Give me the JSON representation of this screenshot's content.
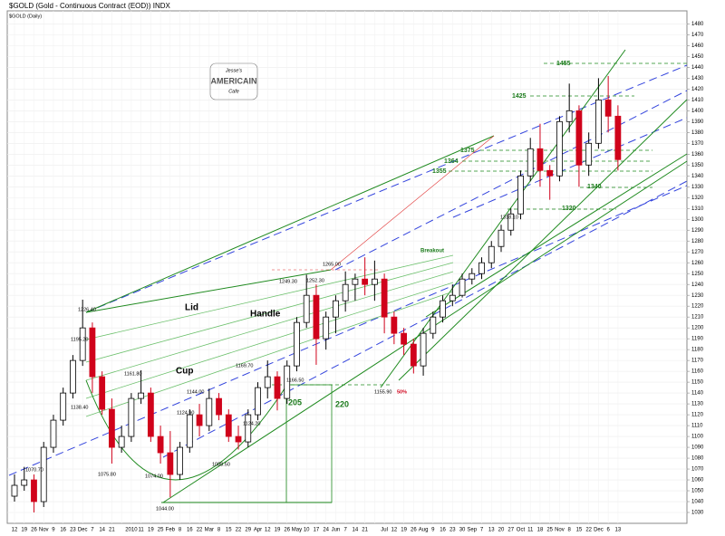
{
  "chart_data": {
    "type": "candlestick",
    "title": "$GOLD (Gold - Continuous Contract (EOD)) INDX",
    "subtitle": "$GOLD (Daily)",
    "logo": [
      "Jesse's",
      "AMERICAIN",
      "Cafe"
    ],
    "categories": [
      "12",
      "19",
      "26",
      "Nov",
      "9",
      "16",
      "23",
      "Dec",
      "7",
      "14",
      "21",
      null,
      "2010",
      "11",
      "19",
      "25",
      "Feb",
      "8",
      "16",
      "22",
      "Mar",
      "8",
      "15",
      "22",
      "29",
      "Apr",
      "12",
      "19",
      "26",
      "May",
      "10",
      "17",
      "24",
      "Jun",
      "7",
      "14",
      "21",
      null,
      "Jul",
      "12",
      "19",
      "26",
      "Aug",
      "9",
      "16",
      "23",
      "30",
      "Sep",
      "7",
      "13",
      "20",
      "27",
      "Oct",
      "11",
      "18",
      "25",
      "Nov",
      "8",
      "15",
      "22",
      "Dec",
      "6",
      "13"
    ],
    "open": [
      1045,
      1055,
      1060,
      1040,
      1090,
      1115,
      1140,
      1170,
      1200,
      1155,
      1125,
      1090,
      1100,
      1135,
      1140,
      1100,
      1085,
      1065,
      1090,
      1120,
      1110,
      1135,
      1120,
      1100,
      1095,
      1120,
      1145,
      1155,
      1135,
      1165,
      1205,
      1230,
      1190,
      1210,
      1225,
      1240,
      1245,
      1240,
      1245,
      1210,
      1195,
      1185,
      1165,
      1195,
      1210,
      1225,
      1230,
      1245,
      1250,
      1260,
      1275,
      1290,
      1305,
      1340,
      1365,
      1345,
      1340,
      1390,
      1400,
      1350,
      1370,
      1410,
      1395
    ],
    "high": [
      1065,
      1072,
      1065,
      1095,
      1120,
      1145,
      1175,
      1226,
      1205,
      1160,
      1135,
      1110,
      1140,
      1161,
      1145,
      1110,
      1105,
      1095,
      1125,
      1130,
      1144,
      1140,
      1125,
      1110,
      1125,
      1150,
      1170,
      1160,
      1170,
      1210,
      1249,
      1240,
      1215,
      1230,
      1252,
      1250,
      1265,
      1262,
      1250,
      1215,
      1200,
      1190,
      1200,
      1215,
      1230,
      1240,
      1250,
      1255,
      1265,
      1280,
      1295,
      1310,
      1345,
      1375,
      1388,
      1350,
      1395,
      1425,
      1405,
      1380,
      1430,
      1432,
      1405
    ],
    "low": [
      1040,
      1050,
      1030,
      1035,
      1085,
      1110,
      1135,
      1165,
      1140,
      1120,
      1075,
      1085,
      1095,
      1130,
      1095,
      1075,
      1044,
      1060,
      1085,
      1100,
      1105,
      1115,
      1095,
      1088,
      1090,
      1115,
      1135,
      1124,
      1130,
      1160,
      1200,
      1166,
      1180,
      1195,
      1215,
      1225,
      1230,
      1225,
      1195,
      1185,
      1175,
      1158,
      1156,
      1190,
      1205,
      1220,
      1228,
      1240,
      1245,
      1255,
      1270,
      1285,
      1300,
      1335,
      1330,
      1318,
      1335,
      1380,
      1330,
      1340,
      1365,
      1380,
      1345
    ],
    "close": [
      1055,
      1060,
      1040,
      1090,
      1115,
      1140,
      1170,
      1200,
      1155,
      1125,
      1090,
      1100,
      1135,
      1140,
      1100,
      1085,
      1065,
      1090,
      1120,
      1110,
      1135,
      1120,
      1100,
      1095,
      1120,
      1145,
      1155,
      1135,
      1165,
      1205,
      1230,
      1190,
      1210,
      1225,
      1240,
      1245,
      1240,
      1245,
      1210,
      1195,
      1185,
      1165,
      1195,
      1210,
      1225,
      1230,
      1245,
      1250,
      1260,
      1275,
      1290,
      1305,
      1340,
      1365,
      1345,
      1340,
      1390,
      1400,
      1350,
      1370,
      1410,
      1395,
      1355
    ],
    "up_color": "#000000",
    "down_color": "#d0021b",
    "ylim": [
      1020,
      1492
    ],
    "yticks": [
      1030,
      1040,
      1050,
      1060,
      1070,
      1080,
      1090,
      1100,
      1110,
      1120,
      1130,
      1140,
      1150,
      1160,
      1170,
      1180,
      1190,
      1200,
      1210,
      1220,
      1230,
      1240,
      1250,
      1260,
      1270,
      1280,
      1290,
      1300,
      1310,
      1320,
      1330,
      1340,
      1350,
      1360,
      1370,
      1380,
      1390,
      1400,
      1410,
      1420,
      1430,
      1440,
      1450,
      1460,
      1470,
      1480
    ],
    "grid": true,
    "annotations": [
      "1070.70",
      "1075.80",
      "1074.00",
      "1044.00",
      "1088.50",
      "1124.90",
      "1144.00",
      "1124.20",
      "1138.40",
      "1161.80",
      "1169.70",
      "1195.20",
      "1226.40",
      "1166.50",
      "1249.30",
      "1252.30",
      "1265.00",
      "1155.90",
      "1318.10",
      "50%",
      "Lid",
      "Handle",
      "Cup",
      "205",
      "220",
      "Breakout",
      "1455",
      "1425",
      "1375",
      "1364",
      "1355",
      "1340",
      "1320"
    ]
  }
}
